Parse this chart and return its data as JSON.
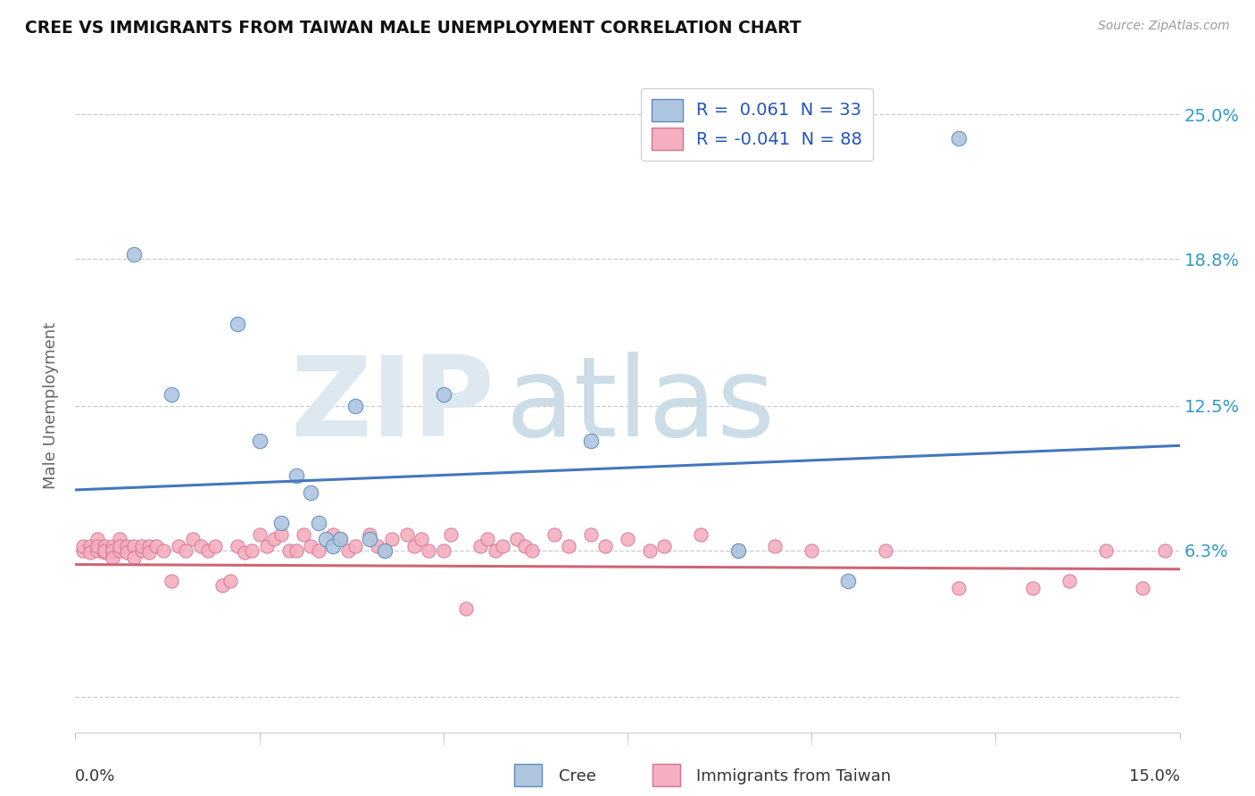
{
  "title": "CREE VS IMMIGRANTS FROM TAIWAN MALE UNEMPLOYMENT CORRELATION CHART",
  "source": "Source: ZipAtlas.com",
  "ylabel": "Male Unemployment",
  "ytick_values": [
    0.0,
    0.063,
    0.125,
    0.188,
    0.25
  ],
  "ytick_labels": [
    "",
    "6.3%",
    "12.5%",
    "18.8%",
    "25.0%"
  ],
  "xlim": [
    0.0,
    0.15
  ],
  "ylim": [
    -0.015,
    0.265
  ],
  "cree_color": "#aec6e0",
  "taiwan_color": "#f4afc0",
  "cree_edge_color": "#5b8db8",
  "taiwan_edge_color": "#d47090",
  "cree_line_color": "#4477bb",
  "taiwan_line_color": "#cc6677",
  "watermark_zip_color": "#dde8f0",
  "watermark_atlas_color": "#ccdde8",
  "legend_label_color": "#2255bb",
  "ytick_color": "#3399cc",
  "cree_line_start_y": 0.089,
  "cree_line_end_y": 0.108,
  "taiwan_line_start_y": 0.057,
  "taiwan_line_end_y": 0.055,
  "cree_points_x": [
    0.008,
    0.013,
    0.022,
    0.025,
    0.028,
    0.03,
    0.032,
    0.033,
    0.034,
    0.035,
    0.036,
    0.038,
    0.04,
    0.042,
    0.05,
    0.07,
    0.09,
    0.105,
    0.12
  ],
  "cree_points_y": [
    0.19,
    0.13,
    0.16,
    0.11,
    0.075,
    0.095,
    0.088,
    0.075,
    0.068,
    0.065,
    0.068,
    0.125,
    0.068,
    0.063,
    0.13,
    0.11,
    0.063,
    0.05,
    0.24
  ],
  "taiwan_points_x": [
    0.001,
    0.001,
    0.002,
    0.002,
    0.003,
    0.003,
    0.003,
    0.004,
    0.004,
    0.004,
    0.005,
    0.005,
    0.005,
    0.005,
    0.006,
    0.006,
    0.006,
    0.007,
    0.007,
    0.008,
    0.008,
    0.009,
    0.009,
    0.01,
    0.01,
    0.011,
    0.012,
    0.013,
    0.014,
    0.015,
    0.016,
    0.017,
    0.018,
    0.019,
    0.02,
    0.021,
    0.022,
    0.023,
    0.024,
    0.025,
    0.026,
    0.027,
    0.028,
    0.029,
    0.03,
    0.031,
    0.032,
    0.033,
    0.035,
    0.036,
    0.037,
    0.038,
    0.04,
    0.041,
    0.042,
    0.043,
    0.045,
    0.046,
    0.047,
    0.048,
    0.05,
    0.051,
    0.053,
    0.055,
    0.056,
    0.057,
    0.058,
    0.06,
    0.061,
    0.062,
    0.065,
    0.067,
    0.07,
    0.072,
    0.075,
    0.078,
    0.08,
    0.085,
    0.09,
    0.095,
    0.1,
    0.11,
    0.12,
    0.13,
    0.135,
    0.14,
    0.145,
    0.148
  ],
  "taiwan_points_y": [
    0.063,
    0.065,
    0.065,
    0.062,
    0.068,
    0.063,
    0.065,
    0.065,
    0.062,
    0.063,
    0.062,
    0.065,
    0.063,
    0.06,
    0.068,
    0.063,
    0.065,
    0.065,
    0.062,
    0.065,
    0.06,
    0.063,
    0.065,
    0.065,
    0.062,
    0.065,
    0.063,
    0.05,
    0.065,
    0.063,
    0.068,
    0.065,
    0.063,
    0.065,
    0.048,
    0.05,
    0.065,
    0.062,
    0.063,
    0.07,
    0.065,
    0.068,
    0.07,
    0.063,
    0.063,
    0.07,
    0.065,
    0.063,
    0.07,
    0.068,
    0.063,
    0.065,
    0.07,
    0.065,
    0.063,
    0.068,
    0.07,
    0.065,
    0.068,
    0.063,
    0.063,
    0.07,
    0.038,
    0.065,
    0.068,
    0.063,
    0.065,
    0.068,
    0.065,
    0.063,
    0.07,
    0.065,
    0.07,
    0.065,
    0.068,
    0.063,
    0.065,
    0.07,
    0.063,
    0.065,
    0.063,
    0.063,
    0.047,
    0.047,
    0.05,
    0.063,
    0.047,
    0.063
  ]
}
